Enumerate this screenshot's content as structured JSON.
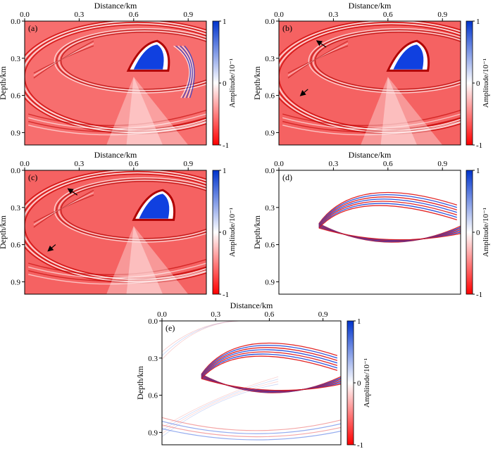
{
  "colors": {
    "red": "#ff0000",
    "white": "#ffffff",
    "blue": "#0033cc",
    "light_red": "#f86a6a",
    "axis": "#000000"
  },
  "chart_data": [
    {
      "type": "heatmap",
      "label": "(a)",
      "xlabel": "Distance/km",
      "ylabel": "Depth/km",
      "xticks": [
        "0.0",
        "0.3",
        "0.6",
        "0.9"
      ],
      "yticks": [
        "0.0",
        "0.3",
        "0.6",
        "0.9"
      ],
      "xlim": [
        0,
        1.0
      ],
      "ylim": [
        0,
        1.0
      ],
      "background": "red",
      "colorbar": {
        "label": "Amplitude/10⁻¹",
        "ticks": [
          "1",
          "0",
          "-1"
        ],
        "range": [
          -1,
          1
        ]
      },
      "arrows": []
    },
    {
      "type": "heatmap",
      "label": "(b)",
      "xlabel": "Distance/km",
      "ylabel": "Depth/km",
      "xticks": [
        "0.0",
        "0.3",
        "0.6",
        "0.9"
      ],
      "yticks": [
        "0.0",
        "0.3",
        "0.6",
        "0.9"
      ],
      "xlim": [
        0,
        1.0
      ],
      "ylim": [
        0,
        1.0
      ],
      "background": "red",
      "colorbar": {
        "label": "Amplitude/10⁻¹",
        "ticks": [
          "1",
          "0",
          "-1"
        ],
        "range": [
          -1,
          1
        ]
      },
      "arrows": [
        {
          "from": [
            0.26,
            0.21
          ],
          "to": [
            0.21,
            0.16
          ]
        },
        {
          "from": [
            0.16,
            0.55
          ],
          "to": [
            0.12,
            0.6
          ]
        }
      ]
    },
    {
      "type": "heatmap",
      "label": "(c)",
      "xlabel": "Distance/km",
      "ylabel": "Depth/km",
      "xticks": [
        "0.0",
        "0.3",
        "0.6",
        "0.9"
      ],
      "yticks": [
        "0.0",
        "0.3",
        "0.6",
        "0.9"
      ],
      "xlim": [
        0,
        1.0
      ],
      "ylim": [
        0,
        1.0
      ],
      "background": "red",
      "colorbar": {
        "label": "Amplitude/10⁻¹",
        "ticks": [
          "1",
          "0",
          "-1"
        ],
        "range": [
          -1,
          1
        ]
      },
      "arrows": [
        {
          "from": [
            0.29,
            0.2
          ],
          "to": [
            0.24,
            0.15
          ]
        },
        {
          "from": [
            0.17,
            0.6
          ],
          "to": [
            0.13,
            0.65
          ]
        }
      ]
    },
    {
      "type": "heatmap",
      "label": "(d)",
      "xlabel": "Distance/km",
      "ylabel": "Depth/km",
      "xticks": [
        "0.0",
        "0.3",
        "0.6",
        "0.9"
      ],
      "yticks": [
        "0.0",
        "0.3",
        "0.6",
        "0.9"
      ],
      "xlim": [
        0,
        1.0
      ],
      "ylim": [
        0,
        1.0
      ],
      "background": "white",
      "colorbar": {
        "label": "Amplitude/10⁻¹",
        "ticks": [
          "1",
          "0",
          "-1"
        ],
        "range": [
          -1,
          1
        ]
      },
      "arrows": []
    },
    {
      "type": "heatmap",
      "label": "(e)",
      "xlabel": "Distance/km",
      "ylabel": "Depth/km",
      "xticks": [
        "0.0",
        "0.3",
        "0.6",
        "0.9"
      ],
      "yticks": [
        "0.0",
        "0.3",
        "0.6",
        "0.9"
      ],
      "xlim": [
        0,
        1.0
      ],
      "ylim": [
        0,
        1.0
      ],
      "background": "white",
      "colorbar": {
        "label": "Amplitude/10⁻¹",
        "ticks": [
          "1",
          "0",
          "-1"
        ],
        "range": [
          -1,
          1
        ]
      },
      "arrows": []
    }
  ]
}
